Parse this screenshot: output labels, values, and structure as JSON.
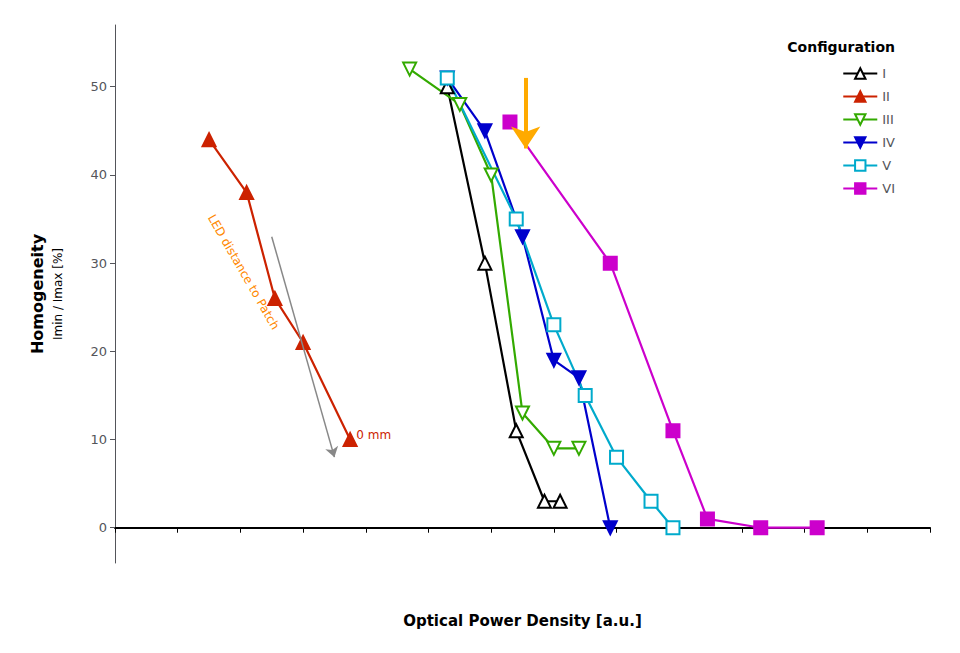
{
  "chart_data": {
    "type": "line",
    "xlabel": "Optical Power Density [a.u.]",
    "ylabel": [
      "Homogeneity",
      "Imin / Imax [%]"
    ],
    "xlim": [
      0,
      13
    ],
    "xticks": [
      0,
      1,
      2,
      3,
      4,
      5,
      6,
      7,
      8,
      9,
      10,
      11,
      12,
      13
    ],
    "ylim": [
      -4,
      57
    ],
    "yticks": [
      0,
      10,
      20,
      30,
      40,
      50
    ],
    "tick_labels": "y",
    "grid": false,
    "legend": "upper right",
    "legend_title": "Configuration",
    "series": [
      {
        "name": "I",
        "color": "#000000",
        "marker": "triangle_up_open",
        "x": [
          5.3,
          5.9,
          6.4,
          6.85,
          7.1
        ],
        "values": [
          50,
          30,
          11,
          3,
          3
        ]
      },
      {
        "name": "II",
        "color": "#cc2200",
        "marker": "triangle_up",
        "x": [
          1.5,
          2.1,
          2.55,
          3.0,
          3.75
        ],
        "values": [
          44,
          38,
          26,
          21,
          10
        ]
      },
      {
        "name": "III",
        "color": "#33aa00",
        "marker": "triangle_down_open",
        "x": [
          4.7,
          5.5,
          6.0,
          6.5,
          7.0,
          7.4
        ],
        "values": [
          52,
          48,
          40,
          13,
          9,
          9
        ]
      },
      {
        "name": "IV",
        "color": "#0000cc",
        "marker": "triangle_down",
        "x": [
          5.3,
          5.9,
          6.5,
          7.0,
          7.4,
          7.9
        ],
        "values": [
          51,
          45,
          33,
          19,
          17,
          0
        ]
      },
      {
        "name": "V",
        "color": "#00aacc",
        "marker": "square_open",
        "x": [
          5.3,
          6.4,
          7.0,
          7.5,
          8.0,
          8.55,
          8.9
        ],
        "values": [
          51,
          35,
          23,
          15,
          8,
          3,
          0
        ]
      },
      {
        "name": "VI",
        "color": "#cc00cc",
        "marker": "square",
        "x": [
          6.3,
          7.9,
          8.9,
          9.45,
          10.3,
          11.2
        ],
        "values": [
          46,
          30,
          11,
          1,
          0,
          0
        ]
      }
    ],
    "annotations": [
      {
        "type": "arrow",
        "x": 6.55,
        "y": 51,
        "x_end": 6.55,
        "y_end": 43,
        "color": "#ffaa00"
      },
      {
        "type": "arrow",
        "x": 2.5,
        "y": 33,
        "x_end": 3.5,
        "y_end": 8,
        "color": "#888888"
      },
      {
        "type": "text",
        "text": "LED distance to Patch",
        "x": 2.05,
        "y": 29,
        "color": "#ff8800"
      },
      {
        "type": "text",
        "text": "0 mm",
        "x": 3.85,
        "y": 10.5,
        "color": "#cc2200"
      }
    ]
  }
}
